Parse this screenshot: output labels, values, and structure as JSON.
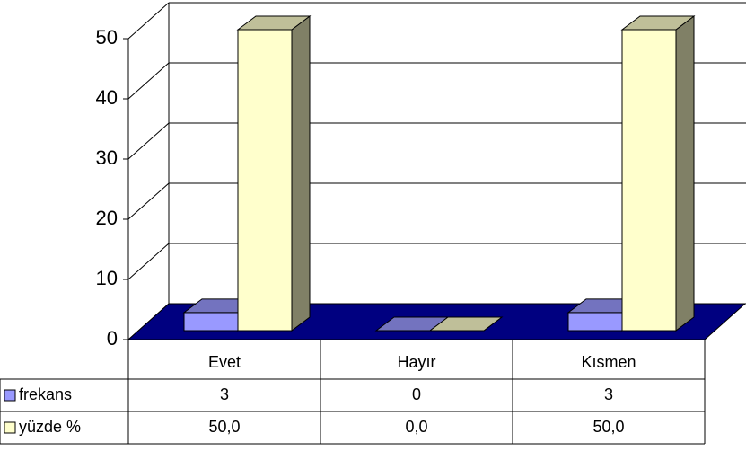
{
  "chart_data": {
    "type": "bar3d",
    "categories": [
      "Evet",
      "Hayır",
      "Kısmen"
    ],
    "series": [
      {
        "name": "frekans",
        "color": "#9999ff",
        "values": [
          3,
          0,
          3
        ]
      },
      {
        "name": "yüzde %",
        "color": "#ffffcc",
        "values": [
          50,
          0,
          50
        ],
        "value_labels": [
          "50,0",
          "0,0",
          "50,0"
        ]
      }
    ],
    "ylim": [
      0,
      50
    ],
    "yticks": [
      0,
      10,
      20,
      30,
      40,
      50
    ],
    "grid": true,
    "floor_color": "#000080"
  }
}
